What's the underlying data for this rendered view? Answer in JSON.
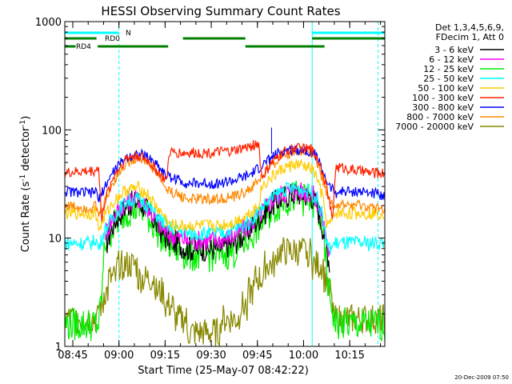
{
  "chart_data": {
    "type": "line",
    "title": "HESSI Observing Summary Count Rates",
    "xlabel": "Start Time (25-May-07 08:42:22)",
    "ylabel_prefix": "Count Rate (s",
    "ylabel_sup1": "-1",
    "ylabel_mid": " detector",
    "ylabel_sup2": "-1",
    "ylabel_suffix": ")",
    "x_unit": "minutes after 08:42:22",
    "xlim": [
      0,
      104
    ],
    "ylim": [
      1,
      1000
    ],
    "yscale": "log",
    "x_ticks": [
      {
        "label": "08:45",
        "x": 2.6
      },
      {
        "label": "09:00",
        "x": 17.6
      },
      {
        "label": "09:15",
        "x": 32.6
      },
      {
        "label": "09:30",
        "x": 47.6
      },
      {
        "label": "09:45",
        "x": 62.6
      },
      {
        "label": "10:00",
        "x": 77.6
      },
      {
        "label": "10:15",
        "x": 92.6
      }
    ],
    "y_ticks": [
      {
        "label": "1",
        "y": 1
      },
      {
        "label": "10",
        "y": 10
      },
      {
        "label": "100",
        "y": 100
      },
      {
        "label": "1000",
        "y": 1000
      }
    ],
    "legend": {
      "placement": "right",
      "header": [
        "Det 1,3,4,5,6,9,",
        "FDecim 1, Att 0"
      ]
    },
    "footer_date": "20-Dec-2009 07:50",
    "series": [
      {
        "name": "3 - 6 keV",
        "color": "#000000",
        "x": [
          0,
          9,
          11,
          13,
          16,
          20,
          24,
          27,
          30,
          33,
          40,
          50,
          55,
          60,
          63,
          67,
          71,
          75,
          80,
          82,
          84,
          86,
          88,
          90,
          95,
          100,
          104
        ],
        "y": [
          null,
          null,
          null,
          8,
          14,
          20,
          22,
          18,
          13,
          10,
          8,
          8,
          9,
          12,
          15,
          20,
          24,
          26,
          25,
          20,
          12,
          6,
          null,
          null,
          null,
          null,
          null
        ]
      },
      {
        "name": "6 - 12 keV",
        "color": "#ff00ff",
        "x": [
          0,
          9,
          11,
          13,
          16,
          20,
          24,
          27,
          30,
          33,
          40,
          50,
          55,
          60,
          63,
          67,
          71,
          75,
          80,
          82,
          84,
          86,
          88
        ],
        "y": [
          null,
          null,
          null,
          11,
          16,
          22,
          23,
          19,
          14,
          11,
          9.5,
          9.5,
          10.5,
          13,
          16,
          22,
          26,
          27,
          26,
          22,
          14,
          7,
          null
        ]
      },
      {
        "name": "12 - 25 keV",
        "color": "#00ee00",
        "x": [
          0,
          9,
          11,
          12,
          13,
          16,
          20,
          24,
          27,
          30,
          33,
          40,
          50,
          55,
          60,
          63,
          67,
          71,
          75,
          80,
          82,
          84,
          85,
          86,
          88,
          90,
          95,
          100,
          104
        ],
        "y": [
          1.6,
          1.6,
          1.6,
          3,
          9,
          13,
          18,
          19,
          16,
          12,
          9,
          7,
          7,
          7.5,
          10,
          13,
          18,
          22,
          24,
          22,
          19,
          11,
          5,
          3,
          1.6,
          1.6,
          1.6,
          1.6,
          1.6
        ]
      },
      {
        "name": "25 - 50 keV",
        "color": "#00ffff",
        "x": [
          0,
          9,
          10,
          11,
          13,
          16,
          20,
          24,
          27,
          30,
          33,
          40,
          50,
          55,
          60,
          63,
          67,
          71,
          75,
          80,
          82,
          84,
          85,
          86,
          88,
          90,
          95,
          100,
          104
        ],
        "y": [
          9,
          9,
          10,
          8,
          12,
          16,
          22,
          23,
          20,
          16,
          13,
          11,
          11,
          12,
          14,
          18,
          23,
          28,
          29,
          27,
          23,
          15,
          9,
          8,
          9,
          9,
          9,
          9,
          9
        ]
      },
      {
        "name": "50 - 100 keV",
        "color": "#ffcc00",
        "x": [
          0,
          9,
          10,
          11,
          13,
          16,
          20,
          24,
          27,
          30,
          33,
          34,
          40,
          50,
          55,
          60,
          63,
          64,
          67,
          71,
          75,
          80,
          82,
          84,
          85,
          86,
          88,
          90,
          95,
          100,
          104
        ],
        "y": [
          17,
          17,
          18,
          12,
          16,
          22,
          28,
          29,
          25,
          19,
          15,
          13,
          13,
          13,
          14,
          17,
          20,
          30,
          36,
          44,
          48,
          44,
          36,
          22,
          14,
          13,
          17,
          17,
          17,
          17,
          17
        ]
      },
      {
        "name": "100 - 300 keV",
        "color": "#ff2200",
        "x": [
          0,
          10,
          11,
          12,
          13,
          16,
          20,
          24,
          27,
          30,
          33,
          34,
          40,
          50,
          55,
          60,
          63,
          64,
          67,
          71,
          75,
          80,
          82,
          84,
          86,
          87,
          88,
          90,
          95,
          100,
          104
        ],
        "y": [
          40,
          42,
          46,
          14,
          22,
          38,
          55,
          58,
          52,
          42,
          33,
          62,
          61,
          62,
          64,
          70,
          75,
          36,
          48,
          62,
          68,
          66,
          56,
          40,
          22,
          14,
          45,
          45,
          42,
          40,
          40
        ]
      },
      {
        "name": "300 - 800 keV",
        "color": "#0000ff",
        "x": [
          0,
          9,
          10,
          11,
          13,
          16,
          20,
          24,
          27,
          30,
          33,
          40,
          50,
          55,
          60,
          63,
          67,
          71,
          75,
          80,
          82,
          84,
          86,
          88,
          90,
          95,
          100,
          104
        ],
        "y": [
          27,
          26,
          28,
          22,
          30,
          42,
          56,
          60,
          56,
          48,
          38,
          32,
          32,
          34,
          38,
          44,
          55,
          64,
          66,
          64,
          56,
          40,
          30,
          26,
          27,
          27,
          26,
          25
        ]
      },
      {
        "name": "800 - 7000 keV",
        "color": "#ff8800",
        "x": [
          0,
          9,
          10,
          11,
          13,
          16,
          20,
          24,
          27,
          30,
          33,
          40,
          50,
          55,
          60,
          63,
          67,
          71,
          75,
          80,
          82,
          84,
          86,
          88,
          90,
          95,
          100,
          104
        ],
        "y": [
          20,
          19,
          20,
          16,
          22,
          34,
          50,
          56,
          50,
          40,
          28,
          23,
          23,
          24,
          28,
          34,
          46,
          58,
          64,
          62,
          52,
          34,
          22,
          20,
          20,
          20,
          19,
          19
        ]
      },
      {
        "name": "7000 - 20000 keV",
        "color": "#888800",
        "x": [
          0,
          9,
          10,
          12,
          14,
          16,
          18,
          20,
          24,
          27,
          30,
          33,
          36,
          40,
          50,
          55,
          58,
          60,
          62,
          64,
          67,
          70,
          73,
          76,
          79,
          82,
          84,
          86,
          88,
          90,
          95,
          100,
          104
        ],
        "y": [
          1.8,
          1.8,
          1.8,
          2.4,
          3.6,
          4.5,
          5.3,
          5.5,
          4.8,
          4.2,
          3.5,
          2.6,
          1.9,
          1.5,
          1.5,
          1.8,
          2.2,
          3.0,
          3.8,
          4.6,
          5.6,
          7,
          8,
          7.6,
          7,
          6,
          5,
          3.2,
          1.8,
          1.8,
          1.8,
          1.8,
          1.8
        ]
      }
    ],
    "attenuator_labels": [
      {
        "label": "N",
        "color": "#00ffff"
      },
      {
        "label": "RD0",
        "color": "#008000"
      },
      {
        "label": "RD4",
        "color": "#008000"
      }
    ],
    "bars": [
      {
        "row": "N",
        "color": "#00ffff",
        "segments": [
          [
            0,
            17.6
          ],
          [
            80.4,
            104
          ]
        ]
      },
      {
        "row": "RD0",
        "color": "#008000",
        "segments": [
          [
            0,
            10.3
          ],
          [
            38.4,
            58.7
          ],
          [
            80.4,
            104
          ]
        ]
      },
      {
        "row": "RD4",
        "color": "#008000",
        "segments": [
          [
            0,
            3.5
          ],
          [
            10.7,
            33.6
          ],
          [
            58.7,
            84.4
          ]
        ]
      }
    ],
    "vertical_lines": [
      {
        "x": 0,
        "style": "solid",
        "color": "#00ffff"
      },
      {
        "x": 17.6,
        "style": "dashed",
        "color": "#00ffff"
      },
      {
        "x": 80.4,
        "style": "solid",
        "color": "#00ffff"
      },
      {
        "x": 101.8,
        "style": "dashed",
        "color": "#00ffff"
      }
    ],
    "spikes": [
      {
        "x": 67.2,
        "y": 105,
        "color": "#0000ff"
      }
    ]
  }
}
